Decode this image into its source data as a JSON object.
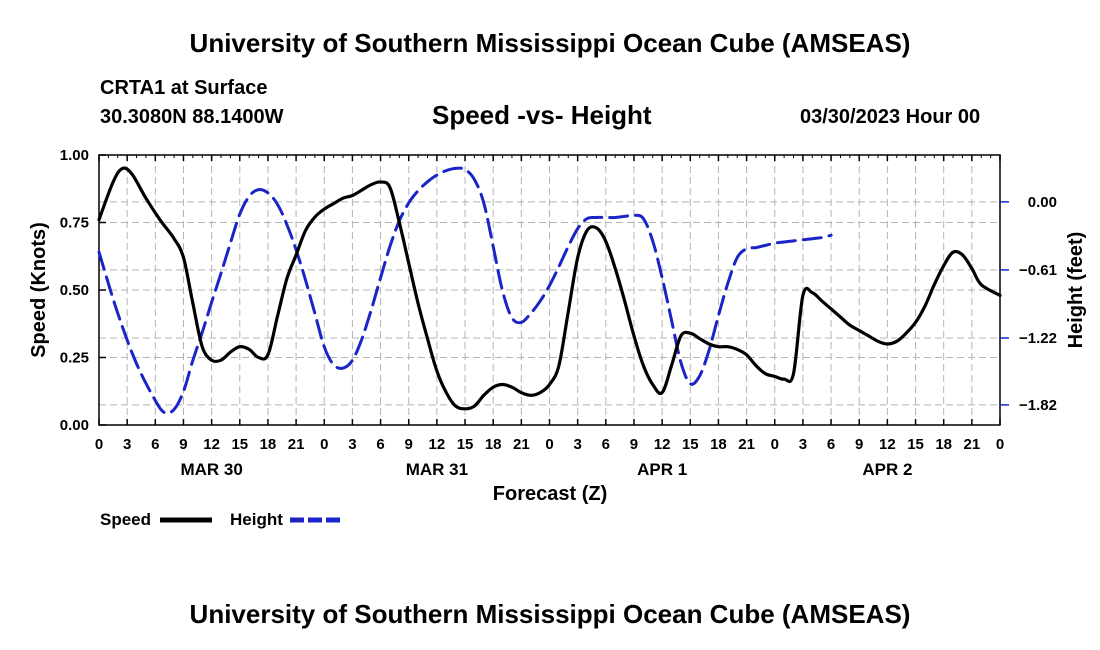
{
  "header": {
    "title": "University of Southern Mississippi Ocean Cube (AMSEAS)",
    "station": "CRTA1 at Surface",
    "coordinates": "30.3080N  88.1400W",
    "datetime": "03/30/2023 Hour 00"
  },
  "footer": {
    "title": "University of Southern Mississippi Ocean Cube (AMSEAS)"
  },
  "chart_data": {
    "type": "line",
    "title": "Speed -vs- Height",
    "xlabel": "Forecast (Z)",
    "ylabel_left": "Speed (Knots)",
    "ylabel_right": "Height (feet)",
    "xlim": [
      0,
      96
    ],
    "ylim_left": [
      0,
      1.0
    ],
    "ylim_right": [
      -2.0,
      0.42
    ],
    "grid": true,
    "legend_position": "bottom-left",
    "x_tick_labels": [
      "0",
      "3",
      "6",
      "9",
      "12",
      "15",
      "18",
      "21",
      "0",
      "3",
      "6",
      "9",
      "12",
      "15",
      "18",
      "21",
      "0",
      "3",
      "6",
      "9",
      "12",
      "15",
      "18",
      "21",
      "0",
      "3",
      "6",
      "9",
      "12",
      "15",
      "18",
      "21",
      "0"
    ],
    "left_ticks": [
      {
        "value": 0.0,
        "label": "0.00"
      },
      {
        "value": 0.25,
        "label": "0.25"
      },
      {
        "value": 0.5,
        "label": "0.50"
      },
      {
        "value": 0.75,
        "label": "0.75"
      },
      {
        "value": 1.0,
        "label": "1.00"
      }
    ],
    "right_ticks": [
      {
        "value": 0.0,
        "label": "0.00"
      },
      {
        "value": -0.61,
        "label": "−0.61"
      },
      {
        "value": -1.22,
        "label": "−1.22"
      },
      {
        "value": -1.82,
        "label": "−1.82"
      }
    ],
    "date_labels": [
      {
        "hour": 12,
        "label": "MAR 30"
      },
      {
        "hour": 36,
        "label": "MAR 31"
      },
      {
        "hour": 60,
        "label": "APR 1"
      },
      {
        "hour": 84,
        "label": "APR 2"
      }
    ],
    "series": [
      {
        "name": "Speed",
        "axis": "left",
        "color": "#000000",
        "dash": "solid",
        "points": [
          [
            0,
            0.76
          ],
          [
            1.5,
            0.9
          ],
          [
            2.5,
            0.95
          ],
          [
            3.5,
            0.93
          ],
          [
            5,
            0.84
          ],
          [
            6.5,
            0.76
          ],
          [
            8,
            0.69
          ],
          [
            9,
            0.62
          ],
          [
            10,
            0.45
          ],
          [
            11,
            0.29
          ],
          [
            12,
            0.24
          ],
          [
            13,
            0.24
          ],
          [
            14,
            0.27
          ],
          [
            15,
            0.29
          ],
          [
            16,
            0.28
          ],
          [
            17,
            0.25
          ],
          [
            18,
            0.26
          ],
          [
            19,
            0.4
          ],
          [
            20,
            0.54
          ],
          [
            21,
            0.63
          ],
          [
            22,
            0.72
          ],
          [
            23,
            0.77
          ],
          [
            24,
            0.8
          ],
          [
            25,
            0.82
          ],
          [
            26,
            0.84
          ],
          [
            27,
            0.85
          ],
          [
            28,
            0.87
          ],
          [
            29,
            0.89
          ],
          [
            30,
            0.9
          ],
          [
            31,
            0.88
          ],
          [
            32,
            0.75
          ],
          [
            33,
            0.6
          ],
          [
            34,
            0.45
          ],
          [
            35,
            0.32
          ],
          [
            36,
            0.2
          ],
          [
            37,
            0.12
          ],
          [
            38,
            0.07
          ],
          [
            39,
            0.06
          ],
          [
            40,
            0.07
          ],
          [
            41,
            0.11
          ],
          [
            42,
            0.14
          ],
          [
            43,
            0.15
          ],
          [
            44,
            0.14
          ],
          [
            45,
            0.12
          ],
          [
            46,
            0.11
          ],
          [
            47,
            0.12
          ],
          [
            48,
            0.15
          ],
          [
            49,
            0.22
          ],
          [
            50,
            0.42
          ],
          [
            51,
            0.62
          ],
          [
            52,
            0.72
          ],
          [
            53,
            0.73
          ],
          [
            54,
            0.68
          ],
          [
            55,
            0.58
          ],
          [
            56,
            0.46
          ],
          [
            57,
            0.33
          ],
          [
            58,
            0.22
          ],
          [
            59,
            0.15
          ],
          [
            60,
            0.12
          ],
          [
            61,
            0.22
          ],
          [
            62,
            0.33
          ],
          [
            63,
            0.34
          ],
          [
            64,
            0.32
          ],
          [
            65,
            0.3
          ],
          [
            66,
            0.29
          ],
          [
            67,
            0.29
          ],
          [
            68,
            0.28
          ],
          [
            69,
            0.26
          ],
          [
            70,
            0.22
          ],
          [
            71,
            0.19
          ],
          [
            72,
            0.18
          ],
          [
            73,
            0.17
          ],
          [
            74,
            0.19
          ],
          [
            75,
            0.48
          ],
          [
            76,
            0.49
          ],
          [
            77,
            0.46
          ],
          [
            78,
            0.43
          ],
          [
            79,
            0.4
          ],
          [
            80,
            0.37
          ],
          [
            81,
            0.35
          ],
          [
            82,
            0.33
          ],
          [
            83,
            0.31
          ],
          [
            84,
            0.3
          ],
          [
            85,
            0.31
          ],
          [
            86,
            0.34
          ],
          [
            87,
            0.38
          ],
          [
            88,
            0.44
          ],
          [
            89,
            0.52
          ],
          [
            90,
            0.59
          ],
          [
            91,
            0.64
          ],
          [
            92,
            0.63
          ],
          [
            93,
            0.58
          ],
          [
            94,
            0.52
          ],
          [
            96,
            0.48
          ]
        ]
      },
      {
        "name": "Height",
        "axis": "right",
        "color": "#1a24c8",
        "dash": "dashed",
        "points": [
          [
            0,
            -0.45
          ],
          [
            2,
            -1.0
          ],
          [
            4,
            -1.45
          ],
          [
            6,
            -1.78
          ],
          [
            7,
            -1.89
          ],
          [
            8,
            -1.86
          ],
          [
            9,
            -1.7
          ],
          [
            10,
            -1.42
          ],
          [
            11,
            -1.17
          ],
          [
            12,
            -0.9
          ],
          [
            13,
            -0.64
          ],
          [
            14,
            -0.37
          ],
          [
            15,
            -0.11
          ],
          [
            16,
            0.05
          ],
          [
            17,
            0.11
          ],
          [
            18,
            0.08
          ],
          [
            19,
            -0.02
          ],
          [
            20,
            -0.2
          ],
          [
            21,
            -0.43
          ],
          [
            22,
            -0.7
          ],
          [
            23,
            -1.0
          ],
          [
            24,
            -1.3
          ],
          [
            25,
            -1.46
          ],
          [
            26,
            -1.49
          ],
          [
            27,
            -1.42
          ],
          [
            28,
            -1.23
          ],
          [
            29,
            -0.97
          ],
          [
            30,
            -0.68
          ],
          [
            31,
            -0.4
          ],
          [
            32,
            -0.17
          ],
          [
            33,
            -0.01
          ],
          [
            34,
            0.1
          ],
          [
            35,
            0.18
          ],
          [
            36,
            0.24
          ],
          [
            37,
            0.28
          ],
          [
            38,
            0.3
          ],
          [
            39,
            0.29
          ],
          [
            40,
            0.2
          ],
          [
            41,
            -0.01
          ],
          [
            42,
            -0.4
          ],
          [
            43,
            -0.8
          ],
          [
            44,
            -1.04
          ],
          [
            45,
            -1.08
          ],
          [
            46,
            -1.0
          ],
          [
            47,
            -0.89
          ],
          [
            48,
            -0.75
          ],
          [
            49,
            -0.58
          ],
          [
            50,
            -0.4
          ],
          [
            51,
            -0.24
          ],
          [
            52,
            -0.15
          ],
          [
            53,
            -0.14
          ],
          [
            54,
            -0.14
          ],
          [
            55,
            -0.14
          ],
          [
            56,
            -0.13
          ],
          [
            57,
            -0.12
          ],
          [
            58,
            -0.15
          ],
          [
            59,
            -0.35
          ],
          [
            60,
            -0.68
          ],
          [
            61,
            -1.06
          ],
          [
            62,
            -1.44
          ],
          [
            63,
            -1.63
          ],
          [
            64,
            -1.56
          ],
          [
            65,
            -1.33
          ],
          [
            66,
            -1.02
          ],
          [
            67,
            -0.73
          ],
          [
            68,
            -0.5
          ],
          [
            69,
            -0.42
          ],
          [
            70,
            -0.41
          ],
          [
            71,
            -0.39
          ],
          [
            72,
            -0.37
          ],
          [
            73,
            -0.36
          ],
          [
            74,
            -0.35
          ],
          [
            75,
            -0.34
          ],
          [
            76,
            -0.33
          ],
          [
            77,
            -0.32
          ],
          [
            78,
            -0.3
          ]
        ]
      }
    ]
  },
  "legend": [
    {
      "label": "Speed",
      "color": "#000000",
      "dash": "solid"
    },
    {
      "label": "Height",
      "color": "#1a24c8",
      "dash": "dashed"
    }
  ]
}
